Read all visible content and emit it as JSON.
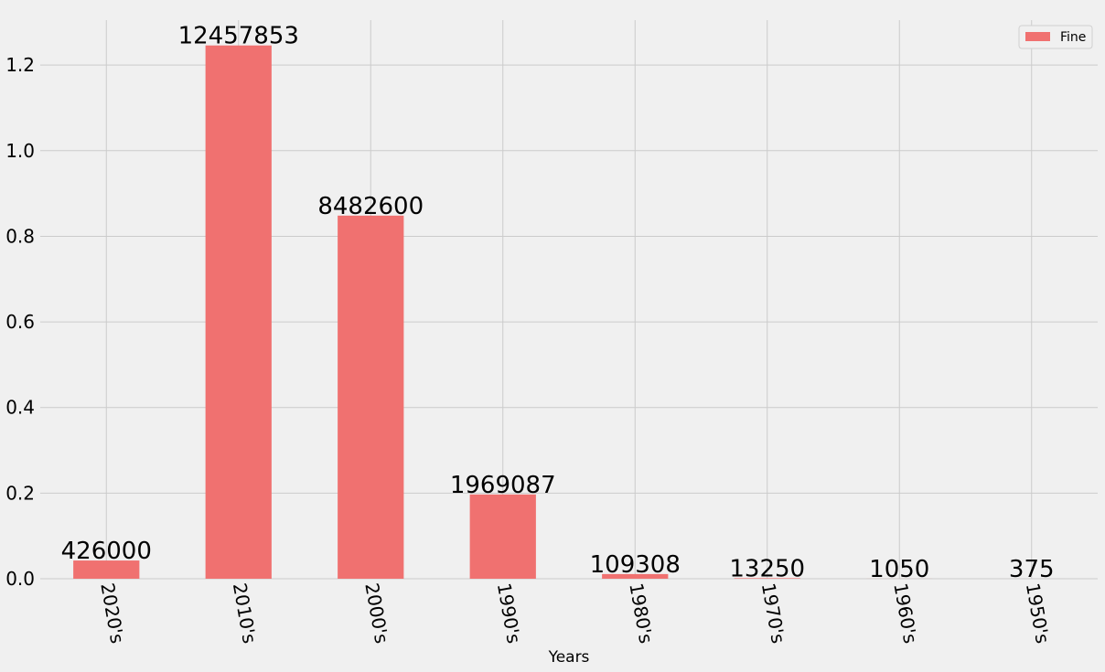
{
  "chart_data": {
    "type": "bar",
    "x_label": "Years",
    "categories": [
      "2020's",
      "2010's",
      "2000's",
      "1990's",
      "1980's",
      "1970's",
      "1960's",
      "1950's"
    ],
    "series": [
      {
        "name": "Fine",
        "color": "#f07170",
        "values": [
          426000,
          12457853,
          8482600,
          1969087,
          109308,
          13250,
          1050,
          375
        ]
      }
    ],
    "ylim": [
      0,
      13050000
    ],
    "yticks": [
      {
        "value": 0,
        "label": "0.0"
      },
      {
        "value": 2000000,
        "label": "0.2"
      },
      {
        "value": 4000000,
        "label": "0.4"
      },
      {
        "value": 6000000,
        "label": "0.6"
      },
      {
        "value": 8000000,
        "label": "0.8"
      },
      {
        "value": 10000000,
        "label": "1.0"
      },
      {
        "value": 12000000,
        "label": "1.2"
      }
    ],
    "grid": true,
    "legend_position": "upper right"
  }
}
